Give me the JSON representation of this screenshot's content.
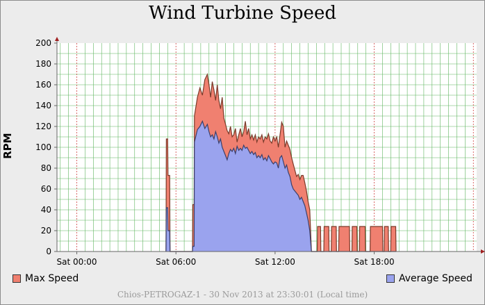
{
  "chart_data": {
    "type": "area",
    "title": "Wind Turbine Speed",
    "ylabel": "RPM",
    "xlabel": "",
    "x_unit": "hours since 00:00 (Sat 30 Nov 2013)",
    "xlim": [
      -1.2,
      24.2
    ],
    "ylim": [
      0,
      200
    ],
    "y_ticks": [
      0,
      20,
      40,
      60,
      80,
      100,
      120,
      140,
      160,
      180,
      200
    ],
    "x_ticks": [
      {
        "value": 0,
        "label": "Sat 00:00"
      },
      {
        "value": 6,
        "label": "Sat 06:00"
      },
      {
        "value": 12,
        "label": "Sat 12:00"
      },
      {
        "value": 18,
        "label": "Sat 18:00"
      }
    ],
    "grid": true,
    "legend_position": "bottom",
    "series": [
      {
        "name": "Max Speed",
        "color": "#f08070",
        "points": [
          [
            5.4,
            0
          ],
          [
            5.42,
            108
          ],
          [
            5.5,
            108
          ],
          [
            5.52,
            73
          ],
          [
            5.62,
            73
          ],
          [
            5.64,
            0
          ],
          [
            7.0,
            0
          ],
          [
            7.02,
            45
          ],
          [
            7.1,
            45
          ],
          [
            7.12,
            130
          ],
          [
            7.3,
            148
          ],
          [
            7.45,
            157
          ],
          [
            7.6,
            150
          ],
          [
            7.75,
            165
          ],
          [
            7.9,
            170
          ],
          [
            8.0,
            160
          ],
          [
            8.1,
            148
          ],
          [
            8.2,
            163
          ],
          [
            8.3,
            155
          ],
          [
            8.4,
            145
          ],
          [
            8.5,
            160
          ],
          [
            8.6,
            145
          ],
          [
            8.7,
            137
          ],
          [
            8.8,
            148
          ],
          [
            8.9,
            128
          ],
          [
            9.0,
            122
          ],
          [
            9.1,
            116
          ],
          [
            9.2,
            113
          ],
          [
            9.3,
            120
          ],
          [
            9.4,
            110
          ],
          [
            9.5,
            112
          ],
          [
            9.6,
            118
          ],
          [
            9.7,
            105
          ],
          [
            9.8,
            112
          ],
          [
            9.9,
            118
          ],
          [
            10.0,
            110
          ],
          [
            10.1,
            115
          ],
          [
            10.2,
            125
          ],
          [
            10.3,
            112
          ],
          [
            10.4,
            118
          ],
          [
            10.5,
            108
          ],
          [
            10.6,
            112
          ],
          [
            10.7,
            107
          ],
          [
            10.8,
            112
          ],
          [
            10.9,
            105
          ],
          [
            11.0,
            110
          ],
          [
            11.1,
            108
          ],
          [
            11.2,
            112
          ],
          [
            11.3,
            105
          ],
          [
            11.4,
            110
          ],
          [
            11.5,
            108
          ],
          [
            11.6,
            113
          ],
          [
            11.7,
            106
          ],
          [
            11.8,
            104
          ],
          [
            11.9,
            110
          ],
          [
            12.0,
            106
          ],
          [
            12.1,
            110
          ],
          [
            12.2,
            100
          ],
          [
            12.3,
            112
          ],
          [
            12.4,
            124
          ],
          [
            12.5,
            120
          ],
          [
            12.6,
            100
          ],
          [
            12.7,
            106
          ],
          [
            12.8,
            102
          ],
          [
            12.9,
            98
          ],
          [
            13.0,
            90
          ],
          [
            13.1,
            84
          ],
          [
            13.2,
            78
          ],
          [
            13.3,
            72
          ],
          [
            13.4,
            74
          ],
          [
            13.5,
            69
          ],
          [
            13.6,
            73
          ],
          [
            13.7,
            73
          ],
          [
            13.8,
            66
          ],
          [
            13.9,
            58
          ],
          [
            14.0,
            48
          ],
          [
            14.1,
            40
          ],
          [
            14.2,
            0
          ],
          [
            14.55,
            0
          ],
          [
            14.57,
            24
          ],
          [
            14.75,
            24
          ],
          [
            14.77,
            0
          ],
          [
            14.95,
            0
          ],
          [
            14.97,
            24
          ],
          [
            15.25,
            24
          ],
          [
            15.27,
            0
          ],
          [
            15.4,
            0
          ],
          [
            15.42,
            24
          ],
          [
            15.7,
            24
          ],
          [
            15.72,
            0
          ],
          [
            15.85,
            0
          ],
          [
            15.87,
            24
          ],
          [
            16.5,
            24
          ],
          [
            16.52,
            0
          ],
          [
            16.65,
            0
          ],
          [
            16.67,
            24
          ],
          [
            16.95,
            24
          ],
          [
            16.97,
            0
          ],
          [
            17.1,
            0
          ],
          [
            17.12,
            24
          ],
          [
            17.45,
            24
          ],
          [
            17.47,
            0
          ],
          [
            17.75,
            0
          ],
          [
            17.77,
            24
          ],
          [
            18.5,
            24
          ],
          [
            18.52,
            0
          ],
          [
            18.6,
            0
          ],
          [
            18.62,
            24
          ],
          [
            18.85,
            24
          ],
          [
            18.87,
            0
          ],
          [
            19.0,
            0
          ],
          [
            19.02,
            24
          ],
          [
            19.3,
            24
          ],
          [
            19.32,
            0
          ]
        ]
      },
      {
        "name": "Average Speed",
        "color": "#9aa3ee",
        "points": [
          [
            5.4,
            0
          ],
          [
            5.42,
            42
          ],
          [
            5.5,
            42
          ],
          [
            5.52,
            20
          ],
          [
            5.62,
            20
          ],
          [
            5.64,
            0
          ],
          [
            7.0,
            0
          ],
          [
            7.02,
            5
          ],
          [
            7.1,
            5
          ],
          [
            7.12,
            105
          ],
          [
            7.3,
            117
          ],
          [
            7.45,
            120
          ],
          [
            7.6,
            125
          ],
          [
            7.75,
            118
          ],
          [
            7.9,
            122
          ],
          [
            8.0,
            115
          ],
          [
            8.1,
            110
          ],
          [
            8.2,
            112
          ],
          [
            8.3,
            108
          ],
          [
            8.4,
            115
          ],
          [
            8.5,
            110
          ],
          [
            8.6,
            104
          ],
          [
            8.7,
            108
          ],
          [
            8.8,
            100
          ],
          [
            8.9,
            96
          ],
          [
            9.0,
            92
          ],
          [
            9.1,
            88
          ],
          [
            9.2,
            94
          ],
          [
            9.3,
            98
          ],
          [
            9.4,
            96
          ],
          [
            9.5,
            99
          ],
          [
            9.6,
            94
          ],
          [
            9.7,
            101
          ],
          [
            9.8,
            97
          ],
          [
            9.9,
            99
          ],
          [
            10.0,
            97
          ],
          [
            10.1,
            102
          ],
          [
            10.2,
            99
          ],
          [
            10.3,
            100
          ],
          [
            10.4,
            97
          ],
          [
            10.5,
            94
          ],
          [
            10.6,
            96
          ],
          [
            10.7,
            93
          ],
          [
            10.8,
            95
          ],
          [
            10.9,
            90
          ],
          [
            11.0,
            92
          ],
          [
            11.1,
            90
          ],
          [
            11.2,
            93
          ],
          [
            11.3,
            88
          ],
          [
            11.4,
            90
          ],
          [
            11.5,
            87
          ],
          [
            11.6,
            92
          ],
          [
            11.7,
            89
          ],
          [
            11.8,
            86
          ],
          [
            11.9,
            84
          ],
          [
            12.0,
            86
          ],
          [
            12.1,
            85
          ],
          [
            12.2,
            80
          ],
          [
            12.3,
            90
          ],
          [
            12.4,
            92
          ],
          [
            12.5,
            86
          ],
          [
            12.6,
            80
          ],
          [
            12.7,
            83
          ],
          [
            12.8,
            76
          ],
          [
            12.9,
            72
          ],
          [
            13.0,
            64
          ],
          [
            13.1,
            60
          ],
          [
            13.2,
            58
          ],
          [
            13.3,
            56
          ],
          [
            13.4,
            54
          ],
          [
            13.5,
            50
          ],
          [
            13.6,
            52
          ],
          [
            13.7,
            48
          ],
          [
            13.8,
            44
          ],
          [
            13.9,
            37
          ],
          [
            14.0,
            30
          ],
          [
            14.1,
            20
          ],
          [
            14.2,
            0
          ],
          [
            14.55,
            0
          ],
          [
            14.75,
            0
          ],
          [
            14.97,
            0
          ],
          [
            19.32,
            0
          ]
        ]
      }
    ]
  },
  "legend": {
    "max_label": "Max Speed",
    "avg_label": "Average Speed"
  },
  "footer": "Chios-PETROGAZ-1 - 30 Nov 2013 at 23:30:01 (Local time)"
}
